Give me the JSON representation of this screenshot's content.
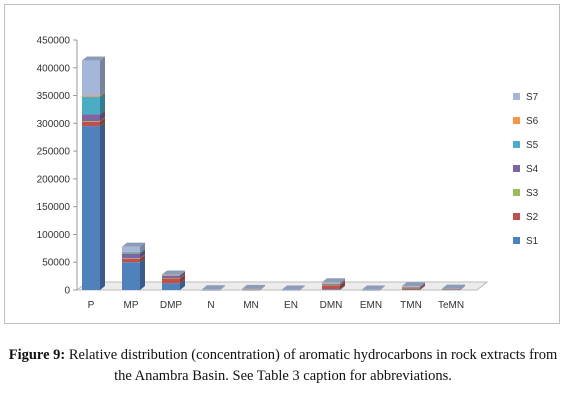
{
  "chart_data": {
    "type": "bar",
    "stacked": true,
    "categories": [
      "P",
      "MP",
      "DMP",
      "N",
      "MN",
      "EN",
      "DMN",
      "EMN",
      "TMN",
      "TeMN"
    ],
    "ylim": [
      0,
      450000
    ],
    "yticks": [
      "0",
      "50000",
      "100000",
      "150000",
      "200000",
      "250000",
      "300000",
      "350000",
      "400000",
      "450000"
    ],
    "grid": false,
    "legend_position": "right",
    "series": [
      {
        "name": "S1",
        "color": "#4f81bd",
        "values": [
          295000,
          50000,
          12000,
          400,
          500,
          200,
          1500,
          300,
          1000,
          800
        ]
      },
      {
        "name": "S2",
        "color": "#c0504d",
        "values": [
          8000,
          6000,
          9000,
          200,
          300,
          100,
          7000,
          200,
          2500,
          400
        ]
      },
      {
        "name": "S3",
        "color": "#9bbb59",
        "values": [
          1000,
          1000,
          500,
          0,
          0,
          0,
          500,
          0,
          300,
          0
        ]
      },
      {
        "name": "S4",
        "color": "#8064a2",
        "values": [
          12000,
          8000,
          4500,
          300,
          400,
          200,
          1500,
          200,
          1500,
          500
        ]
      },
      {
        "name": "S5",
        "color": "#4bacc6",
        "values": [
          32000,
          3000,
          500,
          100,
          100,
          100,
          500,
          100,
          400,
          200
        ]
      },
      {
        "name": "S6",
        "color": "#f79646",
        "values": [
          2000,
          500,
          300,
          0,
          100,
          0,
          500,
          0,
          200,
          100
        ]
      },
      {
        "name": "S7",
        "color": "#a5b7d8",
        "values": [
          63000,
          9500,
          1200,
          300,
          700,
          200,
          2500,
          200,
          1100,
          500
        ]
      }
    ]
  },
  "caption": {
    "label": "Figure 9:",
    "text": " Relative distribution (concentration) of aromatic hydrocarbons in rock extracts from the Anambra Basin. See Table 3 caption for abbreviations."
  }
}
